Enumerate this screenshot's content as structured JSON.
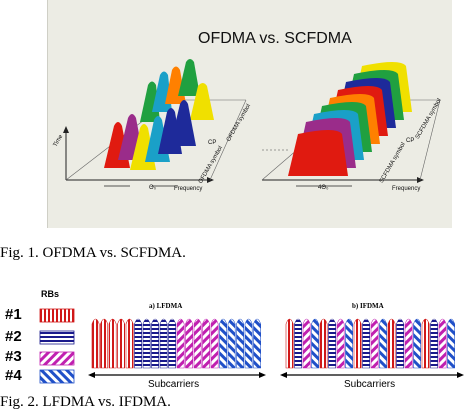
{
  "figure1": {
    "title": "OFDMA vs. SCFDMA",
    "left_panel": {
      "axis_time": "Time",
      "axis_frequency": "Frequency",
      "label_cp": "CP",
      "label_ofdma_symbol": "OFDMA symbol",
      "label_ofdma_symbol_2": "OFDMA symbol",
      "label_bandwidth": "Θ₀"
    },
    "right_panel": {
      "axis_frequency": "Frequency",
      "label_cp": "CP",
      "label_scfdma_symbol": "SCFDMA symbol",
      "label_scfdma_symbol_2": "SCFDMA symbol",
      "label_bandwidth": "4Θ₀"
    },
    "caption": "Fig. 1. OFDMA vs. SCFDMA."
  },
  "figure2": {
    "legend_title": "RBs",
    "legend_items": [
      "#1",
      "#2",
      "#3",
      "#4"
    ],
    "panel_a_title": "a) LFDMA",
    "panel_b_title": "b) IFDMA",
    "axis_label_a": "Subcarriers",
    "axis_label_b": "Subcarriers",
    "caption": "Fig. 2. LFDMA vs. IFDMA."
  },
  "colors": {
    "rb1": "#d01818",
    "rb2": "#1a1a8c",
    "rb3": "#c020b0",
    "rb4": "#2050c8",
    "spectrum": [
      "#e01a10",
      "#1e2a9a",
      "#f0e000",
      "#20a040",
      "#1aa0c8",
      "#ff8000",
      "#9a2c8a"
    ]
  }
}
